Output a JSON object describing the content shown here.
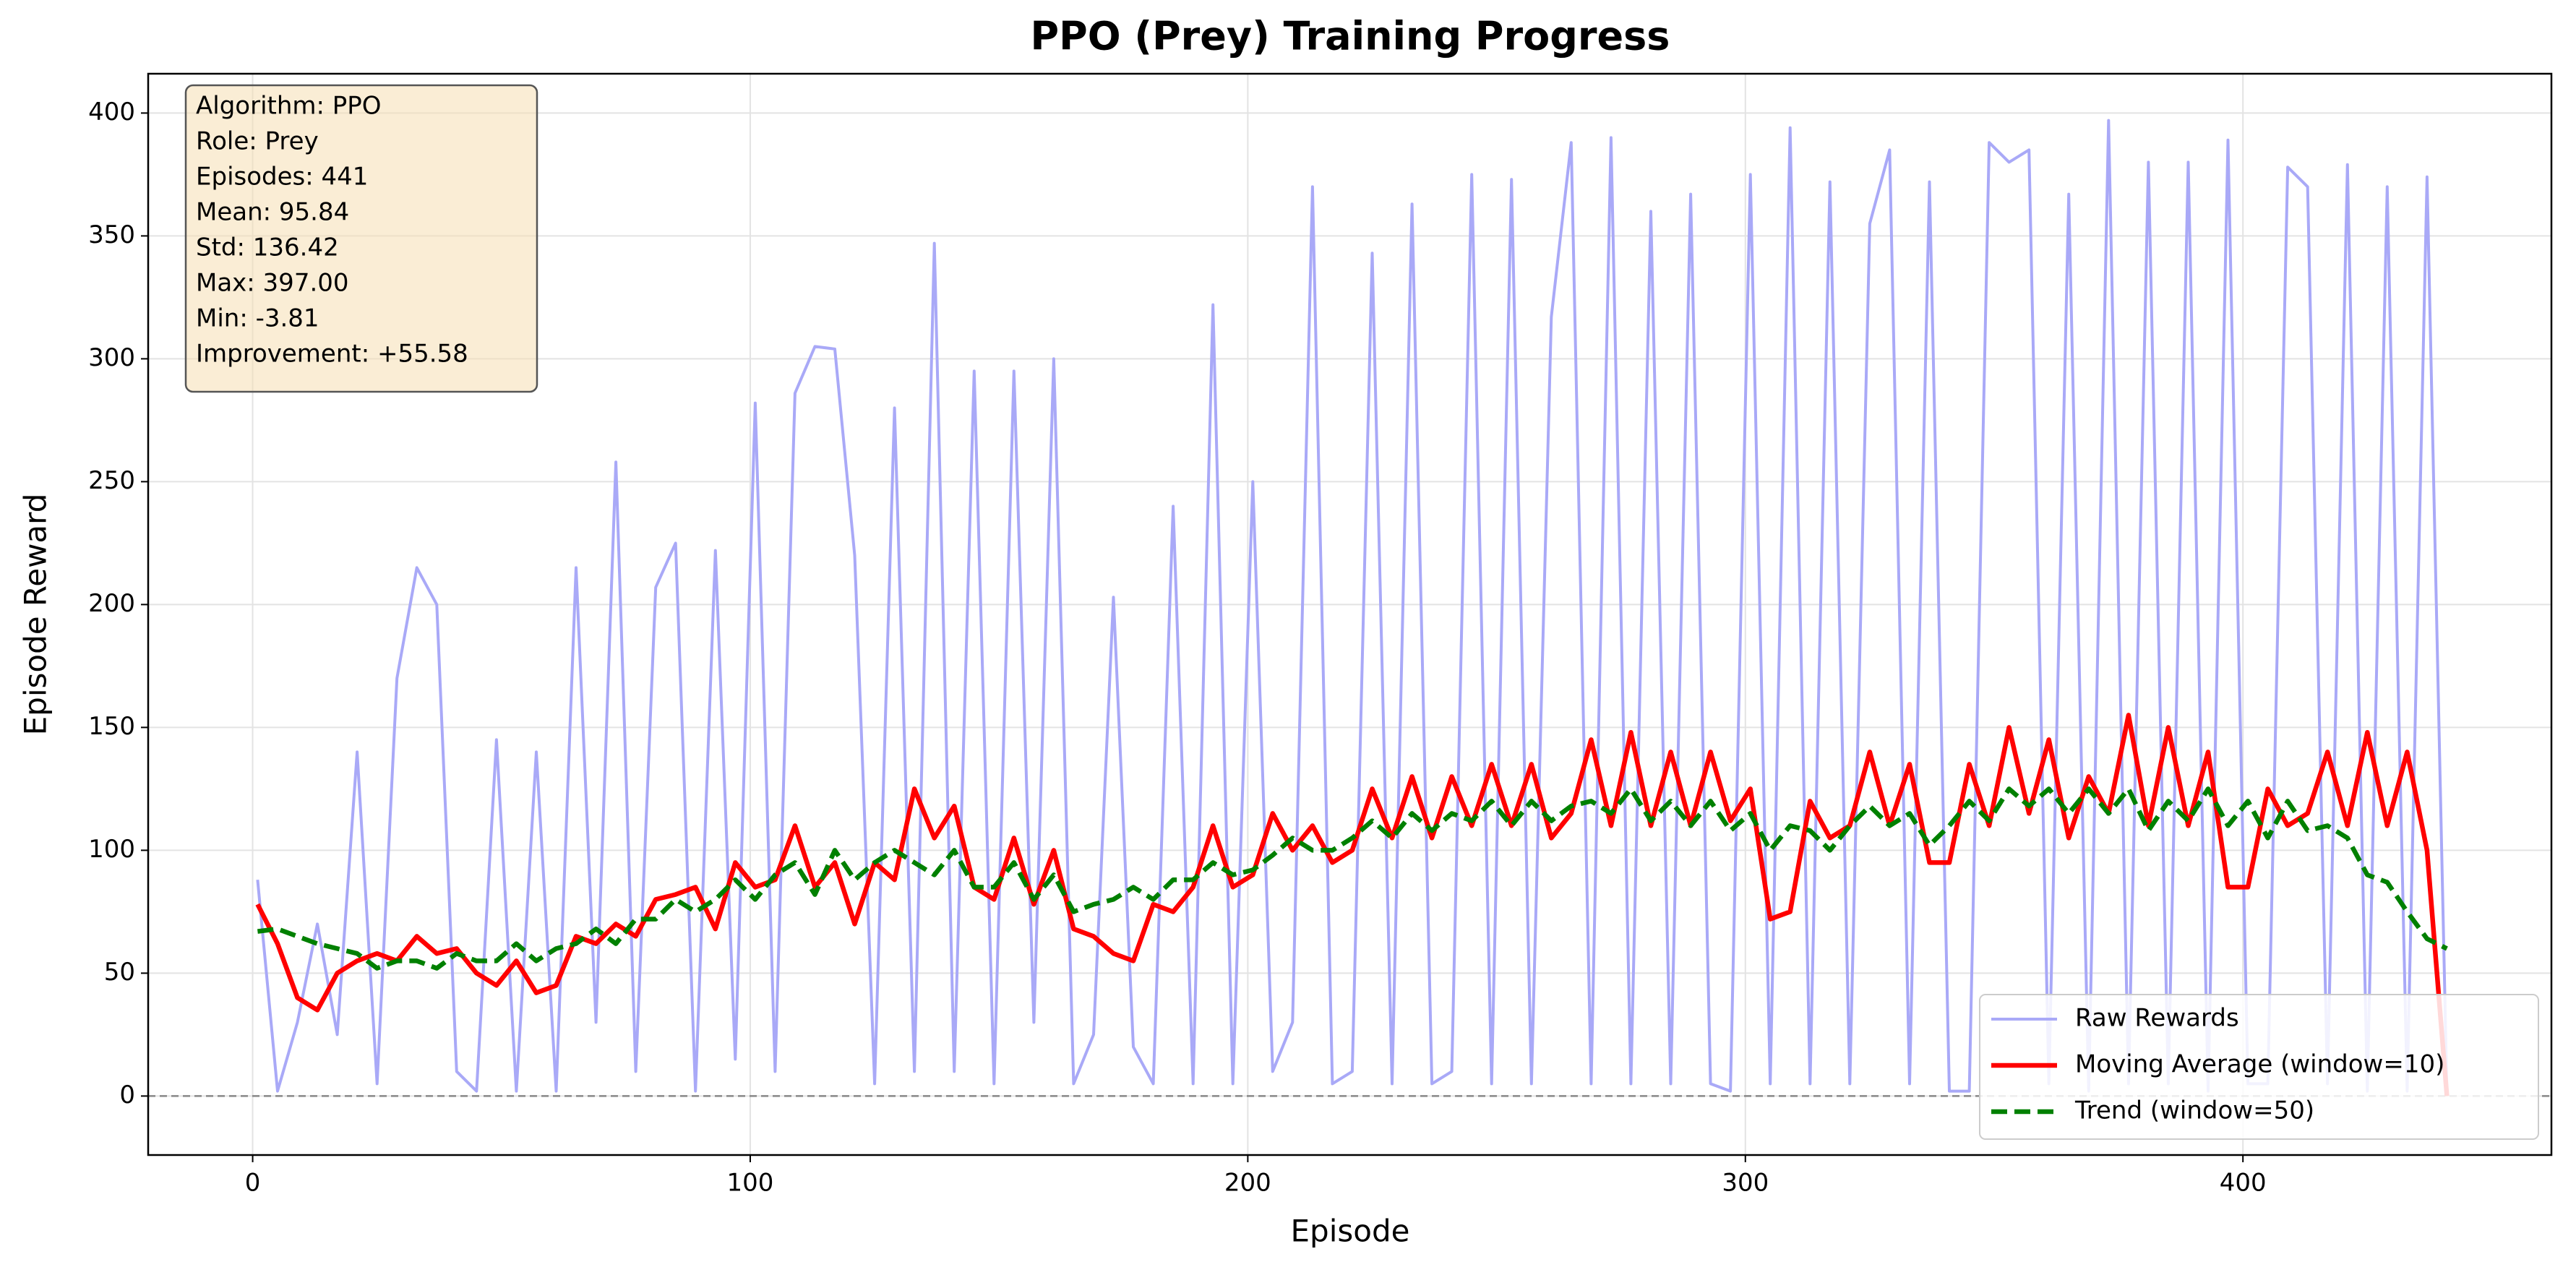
{
  "chart_data": {
    "type": "line",
    "title": "PPO (Prey) Training Progress",
    "x_label": "Episode",
    "y_label": "Episode Reward",
    "annotation_lines": [
      "Algorithm: PPO",
      "Role: Prey",
      "Episodes: 441",
      "Mean: 95.84",
      "Std: 136.42",
      "Max: 397.00",
      "Min: -3.81",
      "Improvement: +55.58"
    ],
    "x": [
      1,
      5,
      9,
      13,
      17,
      21,
      25,
      29,
      33,
      37,
      41,
      45,
      49,
      53,
      57,
      61,
      65,
      69,
      73,
      77,
      81,
      85,
      89,
      93,
      97,
      101,
      105,
      109,
      113,
      117,
      121,
      125,
      129,
      133,
      137,
      141,
      145,
      149,
      153,
      157,
      161,
      165,
      169,
      173,
      177,
      181,
      185,
      189,
      193,
      197,
      201,
      205,
      209,
      213,
      217,
      221,
      225,
      229,
      233,
      237,
      241,
      245,
      249,
      253,
      257,
      261,
      265,
      269,
      273,
      277,
      281,
      285,
      289,
      293,
      297,
      301,
      305,
      309,
      313,
      317,
      321,
      325,
      329,
      333,
      337,
      341,
      345,
      349,
      353,
      357,
      361,
      365,
      369,
      373,
      377,
      381,
      385,
      389,
      393,
      397,
      401,
      405,
      409,
      413,
      417,
      421,
      425,
      429,
      433,
      437,
      441
    ],
    "series": [
      {
        "name": "Raw Rewards",
        "color": "#a9a9f7",
        "linestyle": "solid",
        "values": [
          88,
          2,
          30,
          70,
          25,
          140,
          5,
          170,
          215,
          200,
          10,
          2,
          145,
          2,
          140,
          2,
          215,
          30,
          258,
          10,
          207,
          225,
          2,
          222,
          15,
          282,
          10,
          286,
          305,
          304,
          220,
          5,
          280,
          10,
          347,
          10,
          295,
          5,
          295,
          30,
          300,
          5,
          25,
          203,
          20,
          5,
          240,
          5,
          322,
          5,
          250,
          10,
          30,
          370,
          5,
          10,
          343,
          5,
          363,
          5,
          10,
          375,
          5,
          373,
          5,
          317,
          388,
          5,
          390,
          5,
          360,
          5,
          367,
          5,
          2,
          375,
          5,
          394,
          5,
          372,
          5,
          355,
          385,
          5,
          372,
          2,
          2,
          388,
          380,
          385,
          5,
          367,
          2,
          397,
          5,
          380,
          5,
          380,
          2,
          389,
          5,
          5,
          378,
          370,
          5,
          379,
          2,
          370,
          2,
          374,
          2
        ]
      },
      {
        "name": "Moving Average (window=10)",
        "color": "#ff0000",
        "linestyle": "solid",
        "values": [
          78,
          62,
          40,
          35,
          50,
          55,
          58,
          55,
          65,
          58,
          60,
          50,
          45,
          55,
          42,
          45,
          65,
          62,
          70,
          65,
          80,
          82,
          85,
          68,
          95,
          85,
          88,
          110,
          85,
          95,
          70,
          95,
          88,
          125,
          105,
          118,
          85,
          80,
          105,
          78,
          100,
          68,
          65,
          58,
          55,
          78,
          75,
          85,
          110,
          85,
          90,
          115,
          100,
          110,
          95,
          100,
          125,
          105,
          130,
          105,
          130,
          110,
          135,
          110,
          135,
          105,
          115,
          145,
          110,
          148,
          110,
          140,
          110,
          140,
          112,
          125,
          72,
          75,
          120,
          105,
          110,
          140,
          110,
          135,
          95,
          95,
          135,
          110,
          150,
          115,
          145,
          105,
          130,
          115,
          155,
          110,
          150,
          110,
          140,
          85,
          85,
          125,
          110,
          115,
          140,
          110,
          148,
          110,
          140,
          100,
          0
        ]
      },
      {
        "name": "Trend (window=50)",
        "color": "#008000",
        "linestyle": "dashed",
        "values": [
          67,
          68,
          65,
          62,
          60,
          58,
          52,
          55,
          55,
          52,
          58,
          55,
          55,
          62,
          55,
          60,
          62,
          68,
          62,
          72,
          72,
          80,
          75,
          80,
          88,
          80,
          90,
          95,
          82,
          100,
          88,
          95,
          100,
          95,
          90,
          100,
          85,
          85,
          95,
          80,
          90,
          75,
          78,
          80,
          85,
          80,
          88,
          88,
          95,
          90,
          92,
          98,
          105,
          100,
          100,
          105,
          112,
          105,
          115,
          108,
          115,
          112,
          120,
          110,
          120,
          112,
          118,
          120,
          115,
          125,
          112,
          120,
          110,
          120,
          108,
          115,
          100,
          110,
          108,
          100,
          110,
          118,
          110,
          115,
          102,
          110,
          120,
          112,
          125,
          118,
          125,
          115,
          125,
          115,
          125,
          108,
          120,
          112,
          125,
          110,
          120,
          105,
          120,
          108,
          110,
          105,
          90,
          87,
          75,
          64,
          60
        ]
      }
    ],
    "xlim": [
      -21,
      462
    ],
    "ylim": [
      -24,
      416
    ],
    "xticks": [
      0,
      100,
      200,
      300,
      400
    ],
    "yticks": [
      0,
      50,
      100,
      150,
      200,
      250,
      300,
      350,
      400
    ],
    "grid": true,
    "legend_position": "lower right"
  }
}
